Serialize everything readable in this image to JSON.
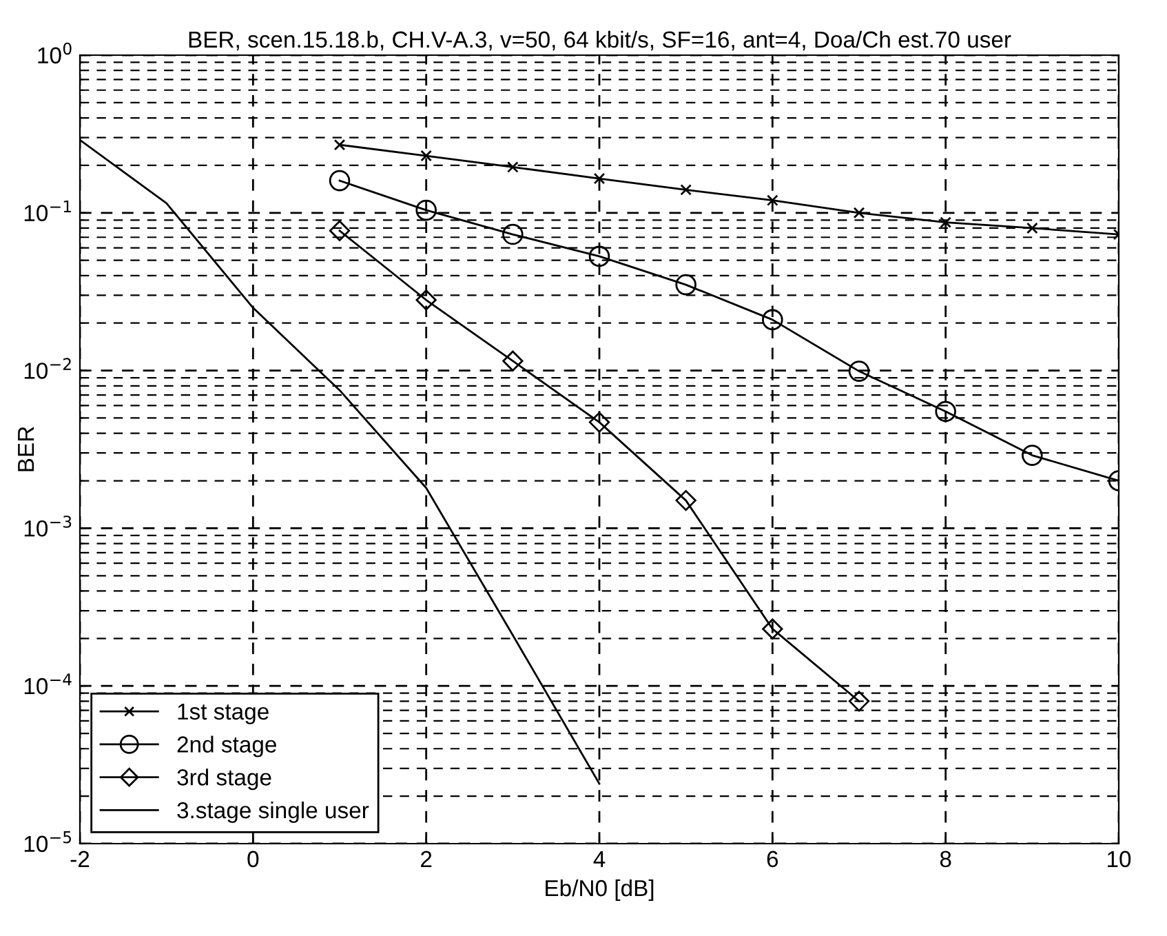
{
  "chart_data": {
    "type": "line",
    "title": "BER, scen.15.18.b, CH.V-A.3, v=50, 64 kbit/s, SF=16, ant=4, Doa/Ch est.70 user",
    "xlabel": "Eb/N0 [dB]",
    "ylabel": "BER",
    "log": "y",
    "xlim": [
      -2,
      10
    ],
    "xticks": [
      -2,
      0,
      2,
      4,
      6,
      8,
      10
    ],
    "ylim": [
      1e-05,
      1
    ],
    "yticks": [
      {
        "value": 1e-05,
        "label": "10$^{−5}$"
      },
      {
        "value": 0.0001,
        "label": "10$^{−4}$"
      },
      {
        "value": 0.001,
        "label": "10$^{−3}$"
      },
      {
        "value": 0.01,
        "label": "10$^{−2}$"
      },
      {
        "value": 0.1,
        "label": "10$^{−1}$"
      },
      {
        "value": 1,
        "label": "10$^{0}$"
      }
    ],
    "grid": true,
    "legend": "bottom left",
    "line_style": "solid",
    "series": [
      {
        "name": "1st stage",
        "color": "#000000",
        "marker": "cross",
        "x": [
          1,
          2,
          3,
          4,
          5,
          6,
          7,
          8,
          9,
          10
        ],
        "values": [
          0.27,
          0.23,
          0.195,
          0.165,
          0.14,
          0.12,
          0.1,
          0.087,
          0.08,
          0.073
        ]
      },
      {
        "name": "2nd stage",
        "color": "#000000",
        "marker": "circle",
        "x": [
          1,
          2,
          3,
          4,
          5,
          6,
          7,
          8,
          9,
          10
        ],
        "values": [
          0.16,
          0.104,
          0.073,
          0.053,
          0.035,
          0.021,
          0.0099,
          0.0055,
          0.0029,
          0.002
        ]
      },
      {
        "name": "3rd stage",
        "color": "#000000",
        "marker": "diamond",
        "x": [
          1,
          2,
          3,
          4,
          5,
          6,
          7
        ],
        "values": [
          0.077,
          0.028,
          0.0115,
          0.0047,
          0.0015,
          0.00023,
          8e-05
        ]
      },
      {
        "name": "3.stage single user",
        "color": "#000000",
        "marker": "none",
        "x": [
          -2,
          -1,
          0,
          1,
          2,
          3,
          4
        ],
        "values": [
          0.29,
          0.115,
          0.025,
          0.0075,
          0.0018,
          0.00021,
          2.4e-05
        ]
      }
    ]
  }
}
